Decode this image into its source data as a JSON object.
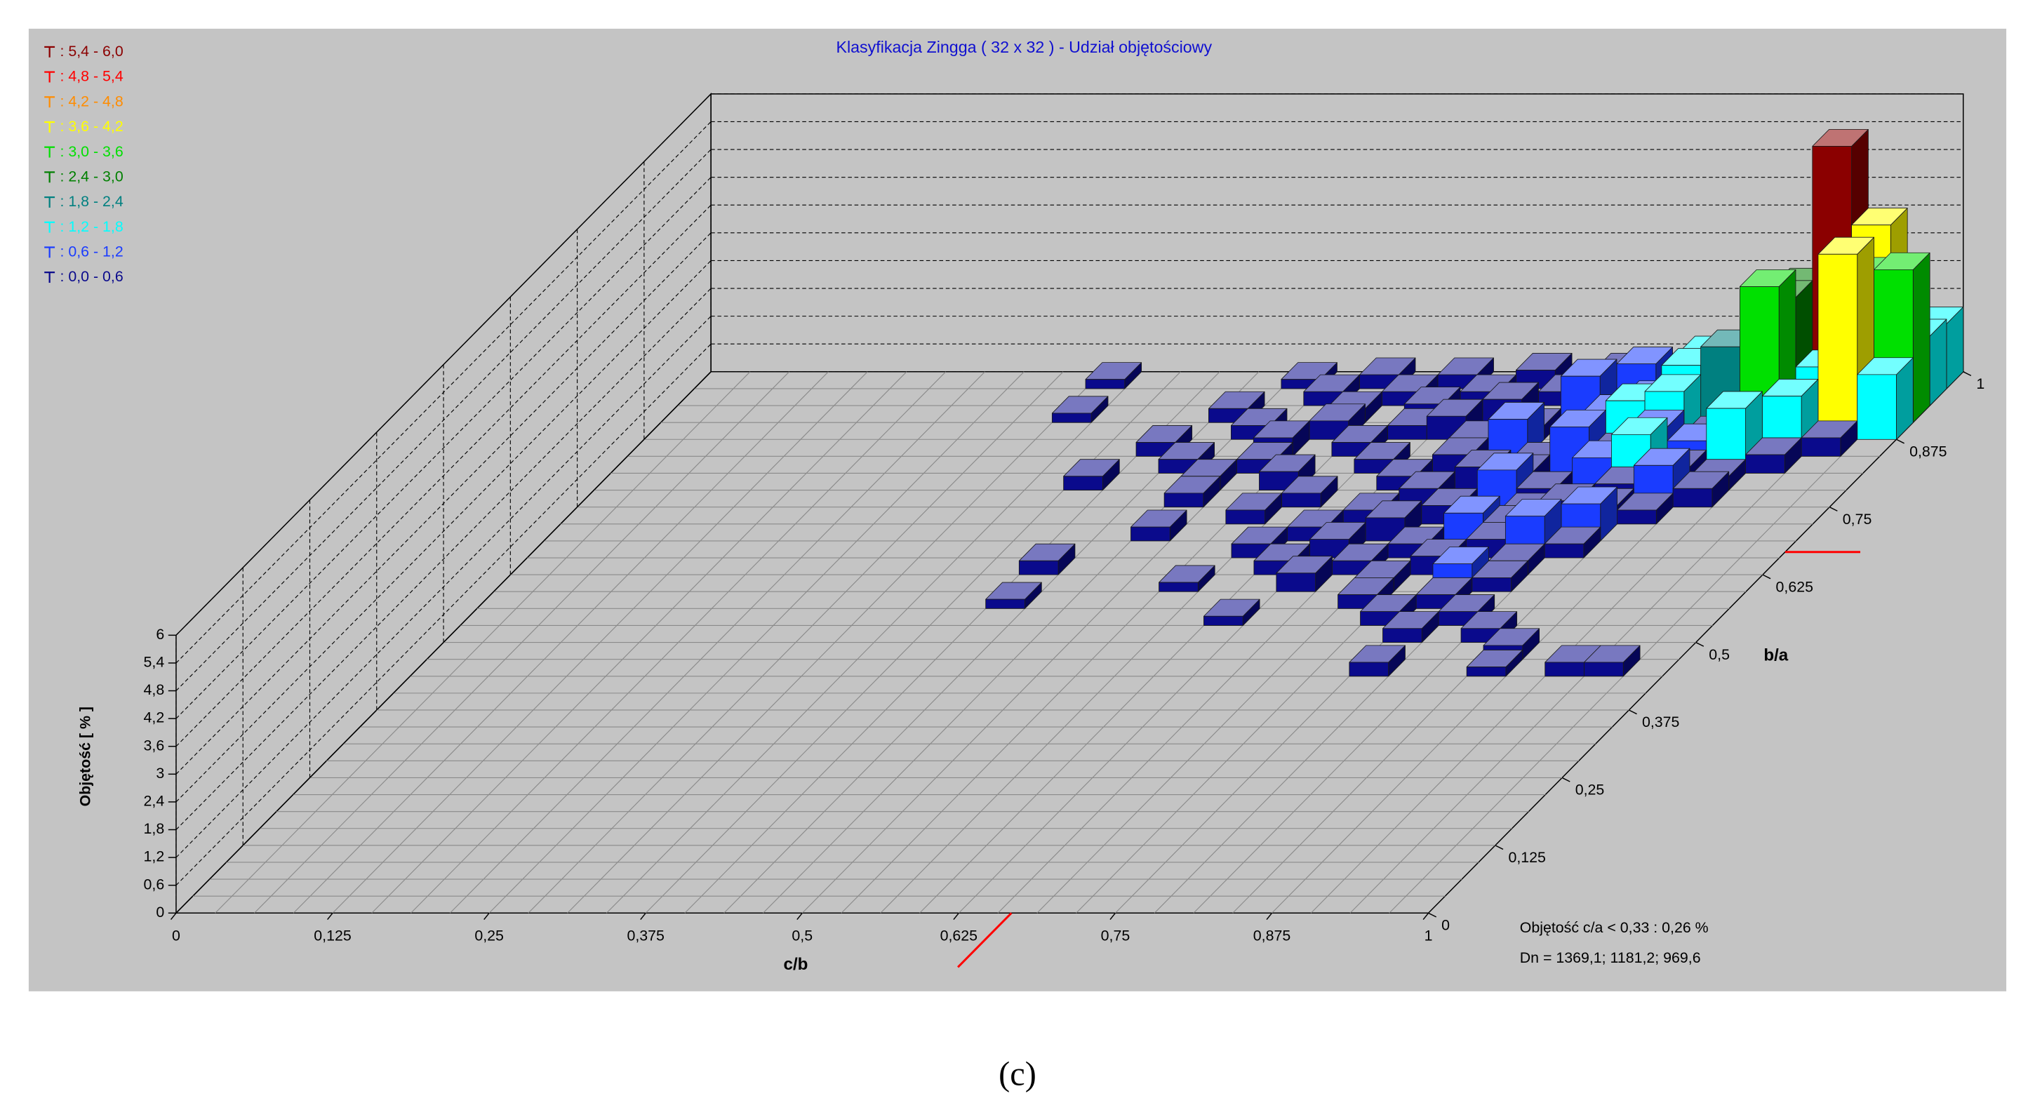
{
  "chart_data": {
    "type": "bar3d",
    "title": "Klasyfikacja Zingga  ( 32 x 32 ) - Udział objętościowy",
    "xlabel": "c/b",
    "ylabel": "b/a",
    "zlabel": "Objętość [ % ]",
    "xlim": [
      0,
      1
    ],
    "ylim": [
      0,
      1
    ],
    "zlim": [
      0,
      6
    ],
    "xticks": [
      0,
      {
        "value": 0.125,
        "label": "0,125"
      },
      {
        "value": 0.25,
        "label": "0,25"
      },
      {
        "value": 0.375,
        "label": "0,375"
      },
      {
        "value": 0.5,
        "label": "0,5"
      },
      {
        "value": 0.625,
        "label": "0,625"
      },
      {
        "value": 0.75,
        "label": "0,75"
      },
      {
        "value": 0.875,
        "label": "0,875"
      },
      1
    ],
    "yticks": [
      0,
      {
        "value": 0.125,
        "label": "0,125"
      },
      {
        "value": 0.25,
        "label": "0,25"
      },
      {
        "value": 0.375,
        "label": "0,375"
      },
      {
        "value": 0.5,
        "label": "0,5"
      },
      {
        "value": 0.625,
        "label": "0,625"
      },
      {
        "value": 0.75,
        "label": "0,75"
      },
      {
        "value": 0.875,
        "label": "0,875"
      },
      1
    ],
    "zticks": [
      0,
      {
        "value": 0.6,
        "label": "0,6"
      },
      {
        "value": 1.2,
        "label": "1,2"
      },
      {
        "value": 1.8,
        "label": "1,8"
      },
      {
        "value": 2.4,
        "label": "2,4"
      },
      3,
      {
        "value": 3.6,
        "label": "3,6"
      },
      {
        "value": 4.2,
        "label": "4,2"
      },
      {
        "value": 4.8,
        "label": "4,8"
      },
      {
        "value": 5.4,
        "label": "5,4"
      },
      6
    ],
    "grid_divisions": 32,
    "legend": [
      {
        "label": ": 5,4 - 6,0",
        "min": 5.4,
        "max": 6.0,
        "color": "#8b0000"
      },
      {
        "label": ": 4,8 - 5,4",
        "min": 4.8,
        "max": 5.4,
        "color": "#ff0000"
      },
      {
        "label": ": 4,2 - 4,8",
        "min": 4.2,
        "max": 4.8,
        "color": "#ff8c00"
      },
      {
        "label": ": 3,6 - 4,2",
        "min": 3.6,
        "max": 4.2,
        "color": "#ffff00"
      },
      {
        "label": ": 3,0 - 3,6",
        "min": 3.0,
        "max": 3.6,
        "color": "#00e000"
      },
      {
        "label": ": 2,4 - 3,0",
        "min": 2.4,
        "max": 3.0,
        "color": "#008000"
      },
      {
        "label": ": 1,8 - 2,4",
        "min": 1.8,
        "max": 2.4,
        "color": "#008080"
      },
      {
        "label": ": 1,2 - 1,8",
        "min": 1.2,
        "max": 1.8,
        "color": "#00ffff"
      },
      {
        "label": ": 0,6 - 1,2",
        "min": 0.6,
        "max": 1.2,
        "color": "#1a3cff"
      },
      {
        "label": ": 0,0 - 0,6",
        "min": 0.0,
        "max": 0.6,
        "color": "#0a0a8c"
      }
    ],
    "x": [
      0.3125,
      0.46875,
      0.53125,
      0.59375,
      0.65625,
      0.71875,
      0.78125,
      0.84375,
      0.875,
      0.90625,
      0.9375,
      0.96875,
      0.5,
      0.5625,
      0.625,
      0.6875,
      0.75,
      0.8125,
      0.84375,
      0.875,
      0.90625,
      0.9375,
      0.96875,
      0.3125,
      0.4375,
      0.53125,
      0.59375,
      0.65625,
      0.71875,
      0.78125,
      0.8125,
      0.84375,
      0.875,
      0.90625,
      0.9375,
      0.96875,
      0.46875,
      0.53125,
      0.59375,
      0.625,
      0.6875,
      0.75,
      0.78125,
      0.8125,
      0.84375,
      0.875,
      0.90625,
      0.9375,
      0.96875,
      0.40625,
      0.5,
      0.5625,
      0.65625,
      0.6875,
      0.75,
      0.78125,
      0.8125,
      0.84375,
      0.875,
      0.90625,
      0.9375,
      0.4375,
      0.5,
      0.59375,
      0.65625,
      0.71875,
      0.75,
      0.78125,
      0.8125,
      0.84375,
      0.875,
      0.90625,
      0.375,
      0.46875,
      0.53125,
      0.625,
      0.6875,
      0.71875,
      0.78125,
      0.8125,
      0.84375,
      0.875,
      0.46875,
      0.5625,
      0.65625,
      0.71875,
      0.75,
      0.8125,
      0.84375,
      0.875,
      0.53125,
      0.625,
      0.6875,
      0.75,
      0.78125,
      0.8125,
      0.84375,
      0.46875,
      0.59375,
      0.65625,
      0.71875,
      0.75,
      0.8125,
      0.5625,
      0.625,
      0.6875,
      0.75,
      0.78125,
      0.8125,
      0.40625,
      0.59375,
      0.65625,
      0.71875,
      0.78125,
      0.53125,
      0.625,
      0.6875,
      0.75,
      0.78125,
      0.40625,
      0.6875,
      0.75,
      0.59375,
      0.71875,
      0.78125,
      0.75,
      0.8125,
      0.84375,
      0.75,
      0.84375,
      0.90625,
      0.9375
    ],
    "y": [
      0.96875,
      0.96875,
      0.96875,
      0.96875,
      0.96875,
      0.96875,
      0.96875,
      0.96875,
      0.96875,
      0.96875,
      0.96875,
      0.96875,
      0.9375,
      0.9375,
      0.9375,
      0.9375,
      0.9375,
      0.9375,
      0.9375,
      0.9375,
      0.9375,
      0.9375,
      0.9375,
      0.90625,
      0.90625,
      0.90625,
      0.90625,
      0.90625,
      0.90625,
      0.90625,
      0.90625,
      0.90625,
      0.90625,
      0.90625,
      0.90625,
      0.90625,
      0.875,
      0.875,
      0.875,
      0.875,
      0.875,
      0.875,
      0.875,
      0.875,
      0.875,
      0.875,
      0.875,
      0.875,
      0.875,
      0.84375,
      0.84375,
      0.84375,
      0.84375,
      0.84375,
      0.84375,
      0.84375,
      0.84375,
      0.84375,
      0.84375,
      0.84375,
      0.84375,
      0.8125,
      0.8125,
      0.8125,
      0.8125,
      0.8125,
      0.8125,
      0.8125,
      0.8125,
      0.8125,
      0.8125,
      0.8125,
      0.78125,
      0.78125,
      0.78125,
      0.78125,
      0.78125,
      0.78125,
      0.78125,
      0.78125,
      0.78125,
      0.78125,
      0.75,
      0.75,
      0.75,
      0.75,
      0.75,
      0.75,
      0.75,
      0.75,
      0.71875,
      0.71875,
      0.71875,
      0.71875,
      0.71875,
      0.71875,
      0.71875,
      0.6875,
      0.6875,
      0.6875,
      0.6875,
      0.6875,
      0.6875,
      0.65625,
      0.65625,
      0.65625,
      0.65625,
      0.65625,
      0.65625,
      0.625,
      0.625,
      0.625,
      0.625,
      0.625,
      0.59375,
      0.59375,
      0.59375,
      0.59375,
      0.59375,
      0.5625,
      0.5625,
      0.5625,
      0.53125,
      0.53125,
      0.53125,
      0.5,
      0.5,
      0.46875,
      0.4375,
      0.4375,
      0.4375,
      0.4375
    ],
    "values": [
      0.2,
      0.2,
      0.3,
      0.3,
      0.4,
      0.4,
      0.4,
      0.5,
      1.4,
      1.6,
      0.9,
      1.4,
      0.3,
      0.3,
      0.3,
      0.3,
      0.9,
      0.8,
      1.4,
      2.6,
      5.6,
      3.9,
      1.5,
      0.2,
      0.3,
      0.3,
      0.4,
      0.5,
      1.0,
      0.5,
      1.5,
      0.9,
      2.7,
      1.2,
      3.2,
      3.3,
      0.3,
      0.4,
      0.3,
      0.5,
      0.3,
      0.6,
      0.9,
      1.6,
      2.0,
      3.3,
      0.3,
      4.0,
      1.4,
      0.3,
      0.4,
      0.3,
      0.4,
      0.8,
      0.5,
      1.2,
      1.4,
      0.5,
      0.6,
      1.3,
      0.4,
      0.3,
      0.3,
      0.3,
      0.4,
      0.3,
      1.0,
      0.5,
      1.0,
      0.7,
      1.4,
      0.4,
      0.3,
      0.3,
      0.4,
      0.3,
      0.5,
      0.4,
      0.7,
      1.2,
      0.5,
      0.3,
      0.3,
      0.3,
      0.4,
      0.8,
      0.4,
      0.5,
      0.9,
      0.4,
      0.3,
      0.3,
      0.4,
      0.3,
      0.5,
      0.4,
      0.3,
      0.3,
      0.3,
      0.5,
      0.6,
      0.4,
      0.8,
      0.3,
      0.4,
      0.3,
      0.4,
      0.9,
      0.3,
      0.3,
      0.3,
      0.3,
      0.4,
      0.3,
      0.2,
      0.4,
      0.3,
      0.6,
      0.3,
      0.2,
      0.3,
      0.3,
      0.2,
      0.3,
      0.3,
      0.3,
      0.3,
      0.3,
      0.3,
      0.2,
      0.3,
      0.3
    ],
    "thresholds": {
      "x": 0.667,
      "y": 0.667,
      "color": "#ff0000"
    },
    "annotations": [
      "Objętość c/a < 0,33 : 0,26 %",
      "Dn = 1369,1; 1181,2; 969,6"
    ]
  },
  "caption": "(c)"
}
